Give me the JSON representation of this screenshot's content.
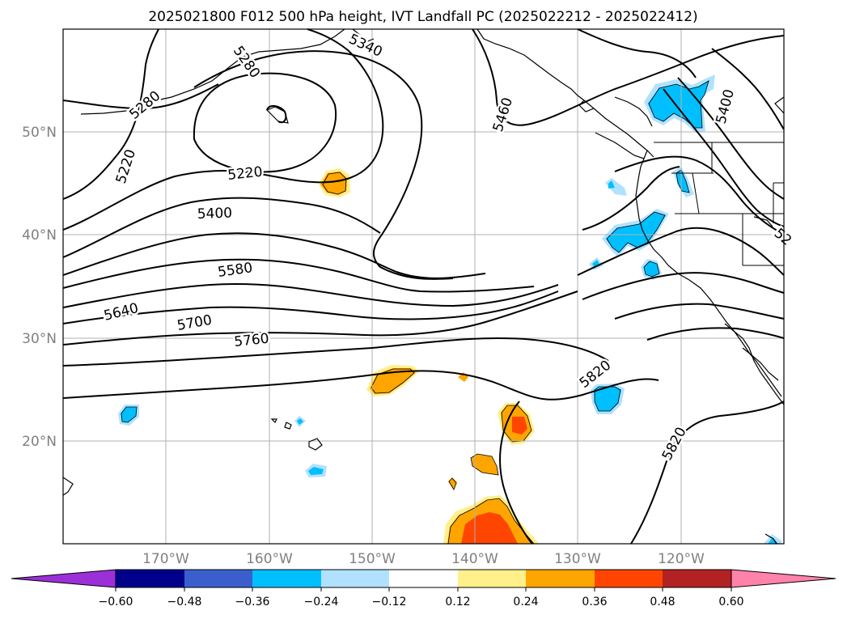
{
  "title": "2025021800 F012 500 hPa height, IVT Landfall PC (2025022212 - 2025022412)",
  "map": {
    "longitude_labels": [
      "170°W",
      "160°W",
      "150°W",
      "140°W",
      "130°W",
      "120°W"
    ],
    "latitude_labels": [
      "50°N",
      "40°N",
      "30°N",
      "20°N"
    ],
    "contour_labels": [
      "5280",
      "5340",
      "5280",
      "5220",
      "5220",
      "5460",
      "5400",
      "5400",
      "5580",
      "5640",
      "5700",
      "5760",
      "5820",
      "5820",
      "52"
    ],
    "grid": true
  },
  "colorbar": {
    "tick_labels": [
      "−0.60",
      "−0.48",
      "−0.36",
      "−0.24",
      "−0.12",
      "0.12",
      "0.24",
      "0.36",
      "0.48",
      "0.60"
    ],
    "colors": [
      "#9b30d9",
      "#00008b",
      "#3a5fcd",
      "#00bfff",
      "#b0e2ff",
      "#ffffff",
      "#fff08a",
      "#ffa500",
      "#ff4500",
      "#b22222",
      "#ff82ab"
    ],
    "extend": "both"
  }
}
